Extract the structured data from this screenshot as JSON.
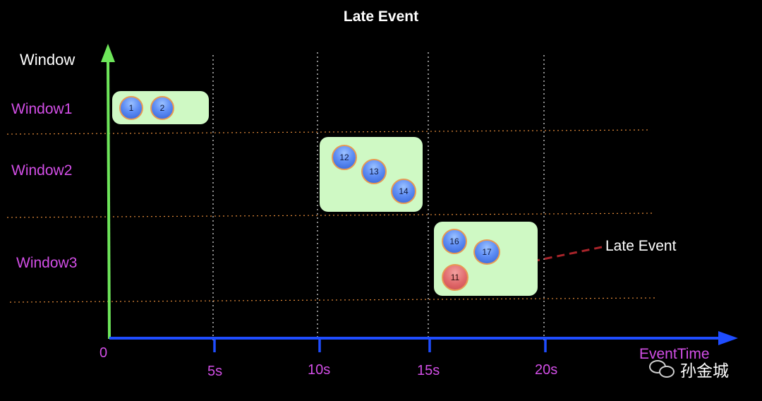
{
  "title": "Late Event",
  "axes": {
    "y_label": "Window",
    "x_label": "EventTime",
    "origin_label": "0",
    "x_ticks": [
      "5s",
      "10s",
      "15s",
      "20s"
    ]
  },
  "windows": [
    {
      "label": "Window1",
      "events": [
        "1",
        "2"
      ]
    },
    {
      "label": "Window2",
      "events": [
        "12",
        "13",
        "14"
      ]
    },
    {
      "label": "Window3",
      "events": [
        "16",
        "17",
        "11"
      ]
    }
  ],
  "late_event": {
    "label": "Late Event",
    "value": "11"
  },
  "watermark": {
    "text": "孙金城",
    "icon": "wechat-icon"
  },
  "colors": {
    "background": "#000000",
    "y_axis": "#6ee65a",
    "x_axis": "#1f4dff",
    "window_box": "#cff9c4",
    "label_magenta": "#d24ee6",
    "late_arrow": "#a8242a",
    "separator": "#e28a3a"
  }
}
